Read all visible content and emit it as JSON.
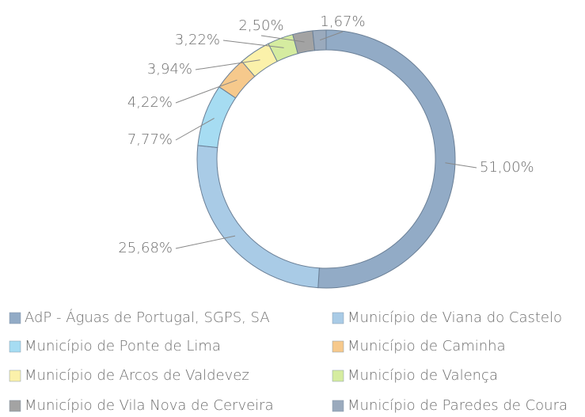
{
  "chart_data": {
    "type": "donut",
    "categories": [
      "AdP - Águas de Portugal, SGPS, SA",
      "Município de Viana do Castelo",
      "Município de Ponte de Lima",
      "Município de Caminha",
      "Município de Arcos de Valdevez",
      "Município de Valença",
      "Município de Vila Nova de Cerveira",
      "Município de Paredes de Coura"
    ],
    "values": [
      51.0,
      25.68,
      7.77,
      4.22,
      3.94,
      3.22,
      2.5,
      1.67
    ],
    "value_labels": [
      "51,00%",
      "25,68%",
      "7,77%",
      "4,22%",
      "3,94%",
      "3,22%",
      "2,50%",
      "1,67%"
    ],
    "colors": [
      "#92abc6",
      "#a9cbe6",
      "#a6dcf2",
      "#f6c98c",
      "#fbf1aa",
      "#d5eca0",
      "#a3a3a3",
      "#9aaabd"
    ]
  }
}
